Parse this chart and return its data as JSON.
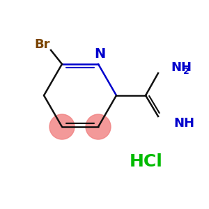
{
  "bg_color": "#ffffff",
  "br_color": "#7a4400",
  "bond_color": "#0000cc",
  "black_bond_color": "#111111",
  "hcl_color": "#00bb00",
  "pink_color": "#f08080",
  "br_label": "Br",
  "n_label": "N",
  "nh2_label": "NH",
  "nh2_sub": "2",
  "nh_label": "NH",
  "hcl_label": "HCl",
  "figsize": [
    3.0,
    3.0
  ],
  "dpi": 100
}
